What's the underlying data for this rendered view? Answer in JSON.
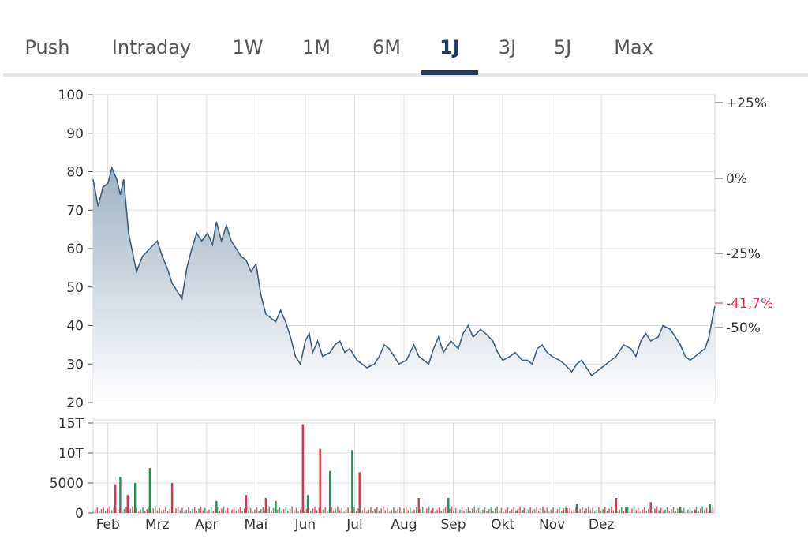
{
  "tabs": [
    {
      "label": "Push",
      "active": false
    },
    {
      "label": "Intraday",
      "active": false
    },
    {
      "label": "1W",
      "active": false
    },
    {
      "label": "1M",
      "active": false
    },
    {
      "label": "6M",
      "active": false
    },
    {
      "label": "1J",
      "active": true
    },
    {
      "label": "3J",
      "active": false
    },
    {
      "label": "5J",
      "active": false
    },
    {
      "label": "Max",
      "active": false
    }
  ],
  "colors": {
    "line": "#3d5f80",
    "area_top": "#9fb1c3",
    "grid": "#dddddd",
    "volume_up": "#1a9850",
    "volume_down": "#e0314b",
    "current_change": "#e0314b",
    "tab_active": "#1e3a5f"
  },
  "chart_data": [
    {
      "type": "area",
      "x": [
        "Feb",
        "Mrz",
        "Apr",
        "Mai",
        "Jun",
        "Jul",
        "Aug",
        "Sep",
        "Okt",
        "Nov",
        "Dez"
      ],
      "xlim": [
        0,
        12.6
      ],
      "ylim": [
        20,
        100
      ],
      "yticks": [
        20,
        30,
        40,
        50,
        60,
        70,
        80,
        90,
        100
      ],
      "right_axis": {
        "ticks": [
          "+25%",
          "0%",
          "-25%",
          "-50%"
        ],
        "current_change": "-41,7%"
      },
      "series": [
        {
          "values": [
            [
              0.0,
              78
            ],
            [
              0.1,
              71
            ],
            [
              0.2,
              76
            ],
            [
              0.3,
              77
            ],
            [
              0.38,
              81
            ],
            [
              0.48,
              78
            ],
            [
              0.55,
              74
            ],
            [
              0.62,
              78
            ],
            [
              0.72,
              64
            ],
            [
              0.8,
              59
            ],
            [
              0.88,
              54
            ],
            [
              1.0,
              58
            ],
            [
              1.15,
              60
            ],
            [
              1.3,
              62
            ],
            [
              1.4,
              58
            ],
            [
              1.5,
              55
            ],
            [
              1.6,
              51
            ],
            [
              1.7,
              49
            ],
            [
              1.8,
              47
            ],
            [
              1.9,
              55
            ],
            [
              2.0,
              60
            ],
            [
              2.1,
              64
            ],
            [
              2.2,
              62
            ],
            [
              2.32,
              64
            ],
            [
              2.42,
              61
            ],
            [
              2.5,
              67
            ],
            [
              2.6,
              62
            ],
            [
              2.7,
              66
            ],
            [
              2.8,
              62
            ],
            [
              2.9,
              60
            ],
            [
              3.0,
              58
            ],
            [
              3.1,
              57
            ],
            [
              3.2,
              54
            ],
            [
              3.3,
              56
            ],
            [
              3.4,
              48
            ],
            [
              3.5,
              43
            ],
            [
              3.6,
              42
            ],
            [
              3.7,
              41
            ],
            [
              3.8,
              44
            ],
            [
              3.9,
              41
            ],
            [
              4.0,
              37
            ],
            [
              4.1,
              32
            ],
            [
              4.2,
              30
            ],
            [
              4.3,
              36
            ],
            [
              4.38,
              38
            ],
            [
              4.45,
              33
            ],
            [
              4.55,
              36
            ],
            [
              4.65,
              32
            ],
            [
              4.8,
              33
            ],
            [
              4.9,
              35
            ],
            [
              5.0,
              36
            ],
            [
              5.1,
              33
            ],
            [
              5.2,
              34
            ],
            [
              5.35,
              31
            ],
            [
              5.45,
              30
            ],
            [
              5.55,
              29
            ],
            [
              5.7,
              30
            ],
            [
              5.8,
              32
            ],
            [
              5.9,
              35
            ],
            [
              6.0,
              34
            ],
            [
              6.1,
              32
            ],
            [
              6.2,
              30
            ],
            [
              6.35,
              31
            ],
            [
              6.5,
              35
            ],
            [
              6.6,
              32
            ],
            [
              6.7,
              31
            ],
            [
              6.8,
              30
            ],
            [
              6.9,
              34
            ],
            [
              7.0,
              37
            ],
            [
              7.1,
              33
            ],
            [
              7.25,
              36
            ],
            [
              7.4,
              34
            ],
            [
              7.5,
              38
            ],
            [
              7.6,
              40
            ],
            [
              7.7,
              37
            ],
            [
              7.85,
              39
            ],
            [
              7.95,
              38
            ],
            [
              8.1,
              36
            ],
            [
              8.2,
              33
            ],
            [
              8.3,
              31
            ],
            [
              8.45,
              32
            ],
            [
              8.55,
              33
            ],
            [
              8.7,
              31
            ],
            [
              8.8,
              31
            ],
            [
              8.9,
              30
            ],
            [
              9.0,
              34
            ],
            [
              9.1,
              35
            ],
            [
              9.2,
              33
            ],
            [
              9.3,
              32
            ],
            [
              9.45,
              31
            ],
            [
              9.55,
              30
            ],
            [
              9.7,
              28
            ],
            [
              9.8,
              30
            ],
            [
              9.9,
              31
            ],
            [
              10.0,
              29
            ],
            [
              10.1,
              27
            ],
            [
              10.2,
              28
            ],
            [
              10.3,
              29
            ],
            [
              10.4,
              30
            ],
            [
              10.5,
              31
            ],
            [
              10.6,
              32
            ],
            [
              10.75,
              35
            ],
            [
              10.9,
              34
            ],
            [
              11.0,
              32
            ],
            [
              11.1,
              36
            ],
            [
              11.2,
              38
            ],
            [
              11.3,
              36
            ],
            [
              11.45,
              37
            ],
            [
              11.55,
              40
            ],
            [
              11.7,
              39
            ],
            [
              11.8,
              37
            ],
            [
              11.9,
              35
            ],
            [
              12.0,
              32
            ],
            [
              12.1,
              31
            ],
            [
              12.2,
              32
            ],
            [
              12.3,
              33
            ],
            [
              12.4,
              34
            ],
            [
              12.48,
              37
            ],
            [
              12.55,
              42
            ],
            [
              12.6,
              45
            ]
          ]
        }
      ]
    },
    {
      "type": "bar",
      "x": [
        "Feb",
        "Mrz",
        "Apr",
        "Mai",
        "Jun",
        "Jul",
        "Aug",
        "Sep",
        "Okt",
        "Nov",
        "Dez"
      ],
      "ylim": [
        0,
        15000
      ],
      "yticks": [
        "0",
        "5000",
        "10T",
        "15T"
      ],
      "series": [
        {
          "name": "up",
          "values": [
            [
              0.55,
              6000
            ],
            [
              0.85,
              5000
            ],
            [
              1.15,
              7500
            ],
            [
              2.5,
              2000
            ],
            [
              3.7,
              2000
            ],
            [
              4.35,
              3000
            ],
            [
              4.8,
              7000
            ],
            [
              5.25,
              10500
            ],
            [
              7.2,
              2500
            ],
            [
              8.7,
              500
            ],
            [
              9.8,
              1500
            ],
            [
              10.8,
              1000
            ],
            [
              11.9,
              1000
            ],
            [
              12.5,
              1500
            ]
          ]
        },
        {
          "name": "down",
          "values": [
            [
              0.45,
              4800
            ],
            [
              0.7,
              3000
            ],
            [
              1.6,
              5000
            ],
            [
              3.1,
              3000
            ],
            [
              3.5,
              2500
            ],
            [
              4.25,
              14800
            ],
            [
              4.6,
              10700
            ],
            [
              5.4,
              6800
            ],
            [
              6.6,
              2500
            ],
            [
              8.6,
              500
            ],
            [
              9.6,
              800
            ],
            [
              10.6,
              2500
            ],
            [
              11.3,
              1800
            ],
            [
              12.2,
              500
            ]
          ]
        }
      ]
    }
  ]
}
